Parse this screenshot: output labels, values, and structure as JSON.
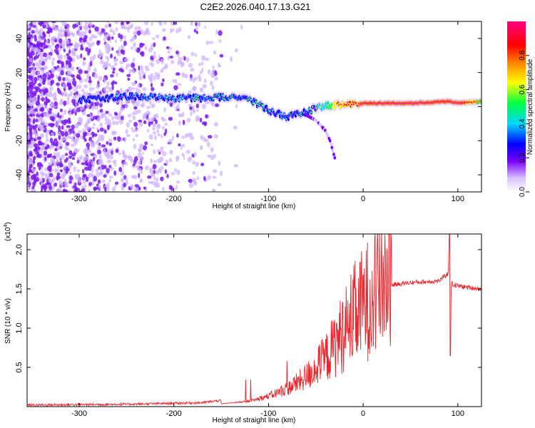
{
  "title": "C2E2.2026.040.17.13.G21",
  "chart_data": [
    {
      "type": "heatmap",
      "title": "C2E2.2026.040.17.13.G21",
      "xlabel": "Height of straight line (km)",
      "ylabel": "Frequency (Hz)",
      "xlim": [
        -355,
        125
      ],
      "ylim": [
        -50,
        50
      ],
      "xticks": [
        -300,
        -200,
        -100,
        0,
        100
      ],
      "yticks": [
        -40,
        -20,
        0,
        20,
        40
      ],
      "colorbar": {
        "label": "Normalized spectral amplitude",
        "range": [
          0,
          1
        ],
        "ticks": [
          0.0,
          0.2,
          0.4,
          0.6,
          0.8
        ],
        "tick_labels": [
          "0.0",
          "0.2",
          "0.4",
          "0.6",
          "0.8"
        ],
        "colors": [
          "#e8d8ff",
          "#7a00ff",
          "#0000ff",
          "#00d8ff",
          "#00ff40",
          "#ffff00",
          "#ff8000",
          "#ff0000",
          "#ff0080"
        ]
      },
      "ridge": {
        "description_x": [
          -300,
          -245,
          -200,
          -160,
          -140,
          -120,
          -100,
          -80,
          -60,
          -45,
          -30,
          -20,
          0,
          50,
          90,
          100,
          125
        ],
        "frequency": [
          4,
          6,
          5,
          5,
          6,
          4,
          -2,
          -6,
          -3,
          0,
          1,
          1,
          2,
          2,
          3,
          2,
          3
        ],
        "amplitude": [
          0.2,
          0.3,
          0.4,
          0.45,
          0.5,
          0.5,
          0.5,
          0.4,
          0.45,
          0.55,
          0.8,
          0.85,
          0.9,
          1.0,
          0.9,
          1.0,
          0.7
        ]
      },
      "tail": {
        "x": [
          -60,
          -50,
          -45,
          -40,
          -35,
          -30
        ],
        "frequency": [
          -5,
          -8,
          -11,
          -14,
          -20,
          -30
        ]
      }
    },
    {
      "type": "line",
      "xlabel": "Height of straight line (km)",
      "ylabel": "SNR (10 * v/v)",
      "y_multiplier": "(x10",
      "y_multiplier_exp": "4",
      "y_multiplier_close": ")",
      "xlim": [
        -355,
        125
      ],
      "ylim": [
        0,
        2.2
      ],
      "xticks": [
        -300,
        -200,
        -100,
        0,
        100
      ],
      "yticks": [
        0.5,
        1.0,
        1.5,
        2.0
      ],
      "ytick_labels": [
        "0.5",
        "1.0",
        "1.5",
        "2.0"
      ],
      "color": "#e8262c",
      "envelope": {
        "x": [
          -355,
          -250,
          -170,
          -150,
          -120,
          -100,
          -80,
          -60,
          -40,
          -20,
          0,
          20,
          30,
          50,
          80,
          90,
          91,
          92,
          93,
          95,
          110,
          125
        ],
        "y": [
          0.02,
          0.03,
          0.05,
          0.08,
          0.12,
          0.2,
          0.3,
          0.45,
          0.65,
          0.95,
          1.2,
          1.48,
          1.55,
          1.58,
          1.6,
          1.7,
          2.2,
          0.65,
          1.6,
          1.55,
          1.52,
          1.5
        ]
      }
    }
  ],
  "colors": {
    "line": "#e8262c",
    "axis": "#000000"
  }
}
